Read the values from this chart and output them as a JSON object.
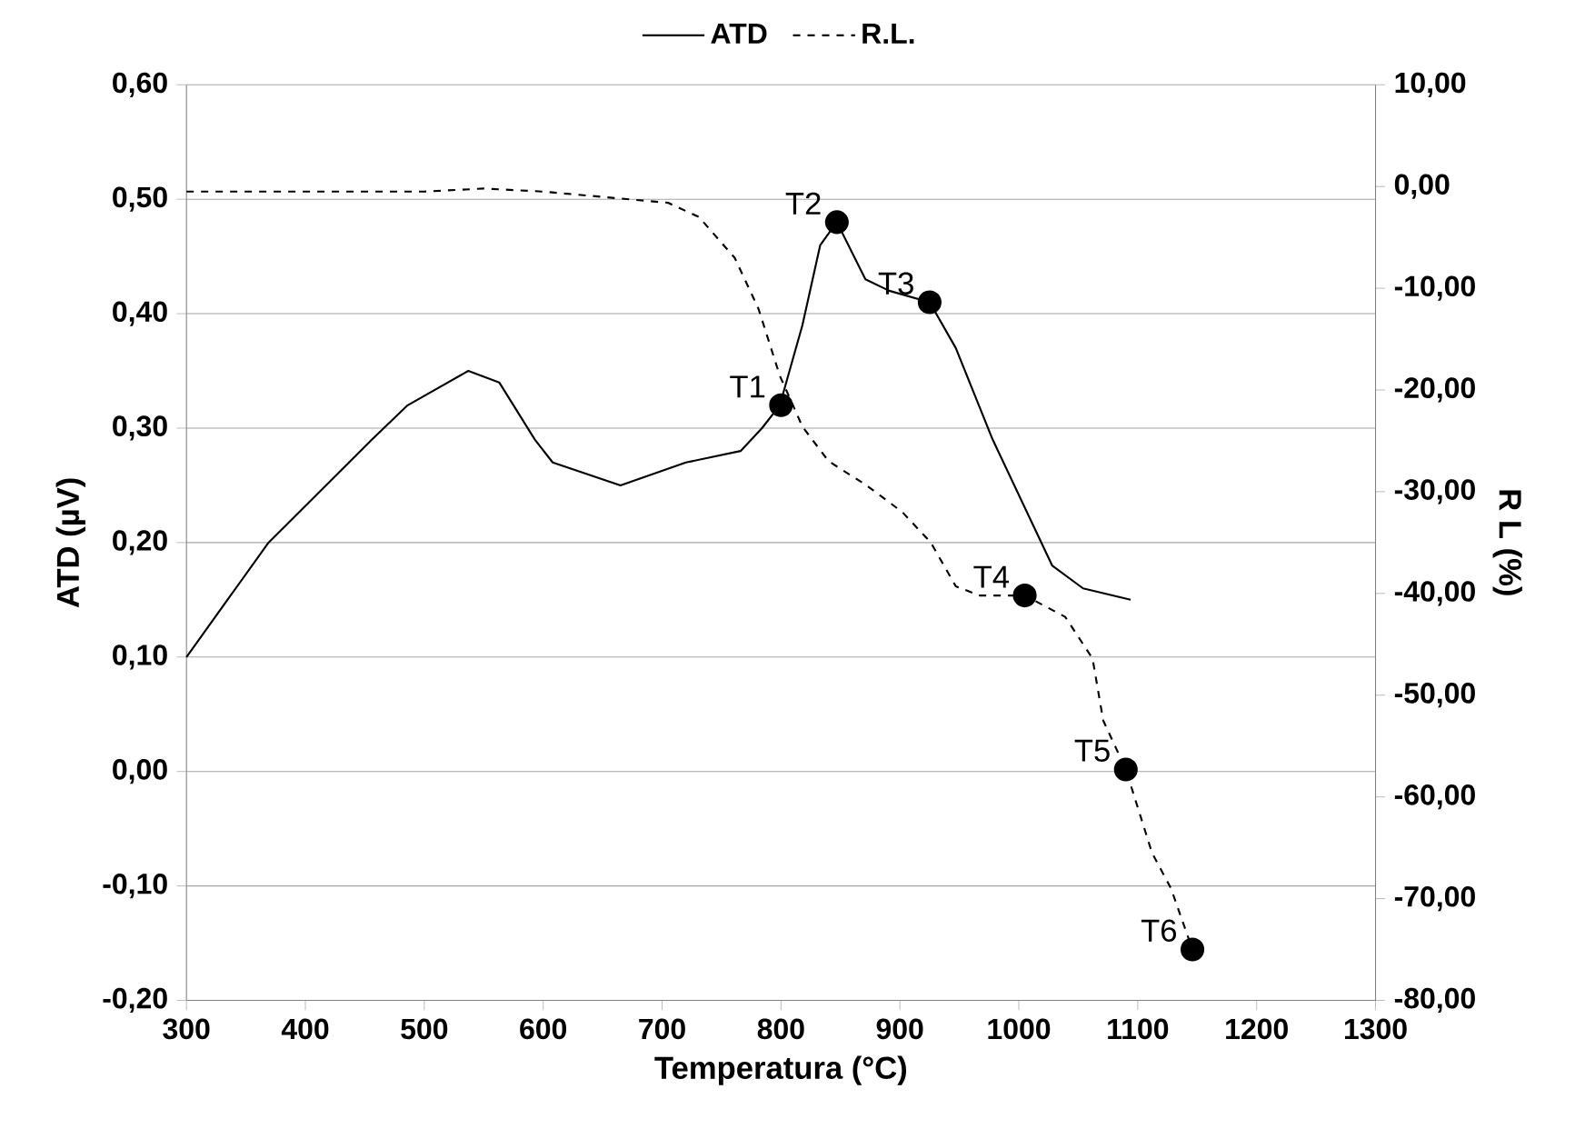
{
  "chart_data": {
    "type": "line",
    "xlabel": "Temperatura (°C)",
    "ylabel": "ATD (µV)",
    "y2label": "R L (%)",
    "xlim": [
      300,
      1300
    ],
    "xticks": [
      300,
      400,
      500,
      600,
      700,
      800,
      900,
      1000,
      1100,
      1200,
      1300
    ],
    "ylim": [
      -0.2,
      0.6
    ],
    "yticks": [
      {
        "value": -0.2,
        "label": "-0,20"
      },
      {
        "value": -0.1,
        "label": "-0,10"
      },
      {
        "value": 0,
        "label": "0,00"
      },
      {
        "value": 0.1,
        "label": "0,10"
      },
      {
        "value": 0.2,
        "label": "0,20"
      },
      {
        "value": 0.3,
        "label": "0,30"
      },
      {
        "value": 0.4,
        "label": "0,40"
      },
      {
        "value": 0.5,
        "label": "0,50"
      },
      {
        "value": 0.6,
        "label": "0,60"
      }
    ],
    "y2lim": [
      -80,
      10
    ],
    "y2ticks": [
      {
        "value": -80,
        "label": "-80,00"
      },
      {
        "value": -70,
        "label": "-70,00"
      },
      {
        "value": -60,
        "label": "-60,00"
      },
      {
        "value": -50,
        "label": "-50,00"
      },
      {
        "value": -40,
        "label": "-40,00"
      },
      {
        "value": -30,
        "label": "-30,00"
      },
      {
        "value": -20,
        "label": "-20,00"
      },
      {
        "value": -10,
        "label": "-10,00"
      },
      {
        "value": 0,
        "label": "0,00"
      },
      {
        "value": 10,
        "label": "10,00"
      }
    ],
    "grid": "y",
    "legend": "top",
    "series": [
      {
        "name": "ATD",
        "line_style": "solid",
        "color": "#000000",
        "x": [
          300,
          369,
          456,
          486,
          537,
          563,
          593,
          608,
          665,
          720,
          766,
          784,
          799,
          818,
          833,
          847,
          871,
          891,
          925,
          947,
          978,
          1028,
          1054,
          1094
        ],
        "values": [
          0.1,
          0.2,
          0.29,
          0.32,
          0.35,
          0.34,
          0.29,
          0.27,
          0.25,
          0.27,
          0.28,
          0.3,
          0.32,
          0.39,
          0.46,
          0.48,
          0.43,
          0.42,
          0.41,
          0.37,
          0.29,
          0.18,
          0.16,
          0.15
        ]
      },
      {
        "name": "R.L.",
        "axis": "y2",
        "line_style": "dashed",
        "color": "#000000",
        "x": [
          300,
          400,
          500,
          550,
          600,
          705,
          731,
          761,
          781,
          799,
          818,
          840,
          871,
          902,
          926,
          947,
          967,
          1005,
          1039,
          1062,
          1071,
          1090,
          1112,
          1128,
          1146
        ],
        "values": [
          -0.5,
          -0.5,
          -0.5,
          -0.2,
          -0.5,
          -1.6,
          -3,
          -7,
          -12,
          -18.6,
          -23.6,
          -27,
          -29.3,
          -32,
          -35,
          -39.3,
          -40.2,
          -40.2,
          -42.3,
          -46.4,
          -52.5,
          -57.3,
          -65.5,
          -69,
          -75
        ]
      },
      {
        "type": "scatter",
        "marker": "circle",
        "color": "#000000",
        "x": [
          800,
          847,
          925
        ],
        "values": [
          0.32,
          0.48,
          0.41
        ],
        "value_labels": [
          "T1",
          "T2",
          "T3"
        ]
      },
      {
        "type": "scatter",
        "axis": "y2",
        "marker": "circle",
        "color": "#000000",
        "x": [
          1005,
          1090,
          1146
        ],
        "values": [
          -40.2,
          -57.3,
          -75
        ],
        "value_labels": [
          "T4",
          "T5",
          "T6"
        ]
      }
    ]
  }
}
